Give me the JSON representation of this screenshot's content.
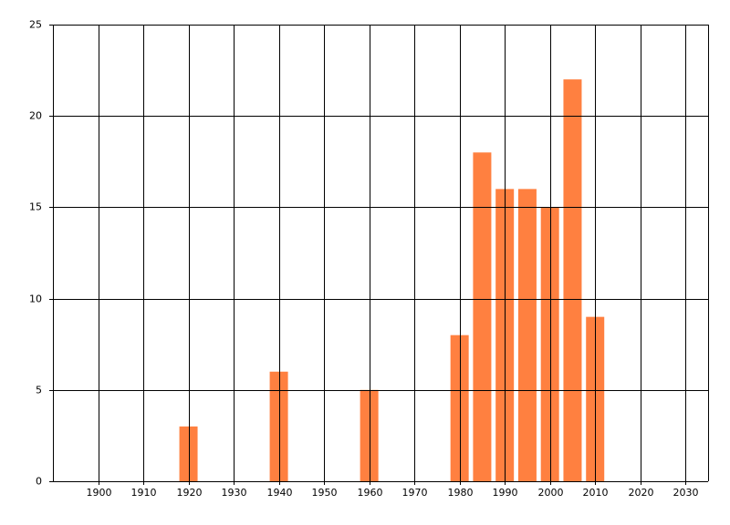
{
  "chart_data": {
    "type": "bar",
    "x": [
      1920,
      1940,
      1960,
      1980,
      1985,
      1990,
      1995,
      2000,
      2005,
      2010
    ],
    "values": [
      3,
      6,
      5,
      8,
      18,
      16,
      16,
      15,
      22,
      9
    ],
    "color": "#ff8040",
    "xlim": [
      1890,
      2035
    ],
    "xticks": [
      1900,
      1910,
      1920,
      1930,
      1940,
      1950,
      1960,
      1970,
      1980,
      1990,
      2000,
      2010,
      2020,
      2030
    ],
    "ylim": [
      0,
      25
    ],
    "yticks": [
      0,
      5,
      10,
      15,
      20,
      25
    ],
    "grid": true
  }
}
